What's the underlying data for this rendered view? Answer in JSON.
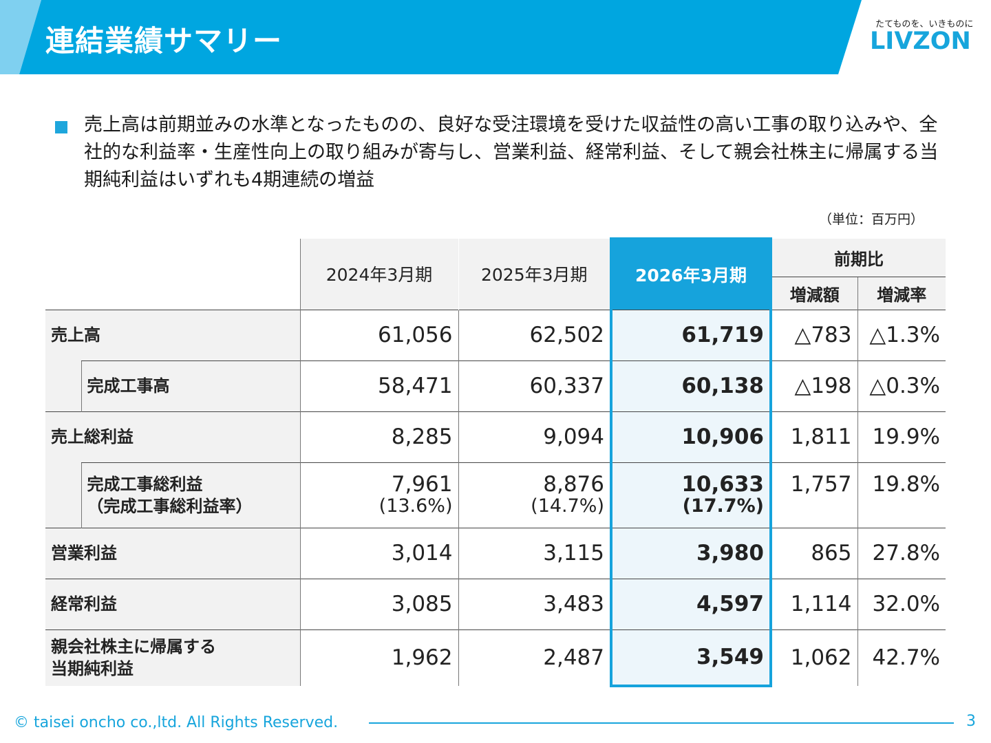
{
  "header": {
    "title": "連結業績サマリー",
    "logo_tagline": "たてものを、いきものに",
    "logo_text": "LIVZON",
    "band_color": "#00a6e0",
    "accent_light": "#7fd0f0"
  },
  "summary": {
    "text": "売上高は前期並みの水準となったものの、良好な受注環境を受けた収益性の高い工事の取り込みや、全社的な利益率・生産性向上の取り組みが寄与し、営業利益、経常利益、そして親会社株主に帰属する当期純利益はいずれも4期連続の増益"
  },
  "unit_note": "（単位：百万円）",
  "table": {
    "columns": {
      "fy2024": "2024年3月期",
      "fy2025": "2025年3月期",
      "fy2026": "2026年3月期",
      "yoy": "前期比",
      "change_amount": "増減額",
      "change_rate": "増減率"
    },
    "rows": [
      {
        "label": "売上高",
        "fy2024": "61,056",
        "fy2025": "62,502",
        "fy2026": "61,719",
        "change_amount": "△783",
        "change_rate": "△1.3%"
      },
      {
        "label": "完成工事高",
        "fy2024": "58,471",
        "fy2025": "60,337",
        "fy2026": "60,138",
        "change_amount": "△198",
        "change_rate": "△0.3%"
      },
      {
        "label": "売上総利益",
        "fy2024": "8,285",
        "fy2025": "9,094",
        "fy2026": "10,906",
        "change_amount": "1,811",
        "change_rate": "19.9%"
      },
      {
        "label": "完成工事総利益",
        "label2": "（完成工事総利益率）",
        "fy2024": "7,961",
        "fy2024_pct": "(13.6%)",
        "fy2025": "8,876",
        "fy2025_pct": "(14.7%)",
        "fy2026": "10,633",
        "fy2026_pct": "(17.7%)",
        "change_amount": "1,757",
        "change_rate": "19.8%"
      },
      {
        "label": "営業利益",
        "fy2024": "3,014",
        "fy2025": "3,115",
        "fy2026": "3,980",
        "change_amount": "865",
        "change_rate": "27.8%"
      },
      {
        "label": "経常利益",
        "fy2024": "3,085",
        "fy2025": "3,483",
        "fy2026": "4,597",
        "change_amount": "1,114",
        "change_rate": "32.0%"
      },
      {
        "label": "親会社株主に帰属する",
        "label2": "当期純利益",
        "fy2024": "1,962",
        "fy2025": "2,487",
        "fy2026": "3,549",
        "change_amount": "1,062",
        "change_rate": "42.7%"
      }
    ]
  },
  "footer": {
    "copyright": "© taisei oncho co.,ltd. All Rights Reserved.",
    "page_number": "3"
  }
}
